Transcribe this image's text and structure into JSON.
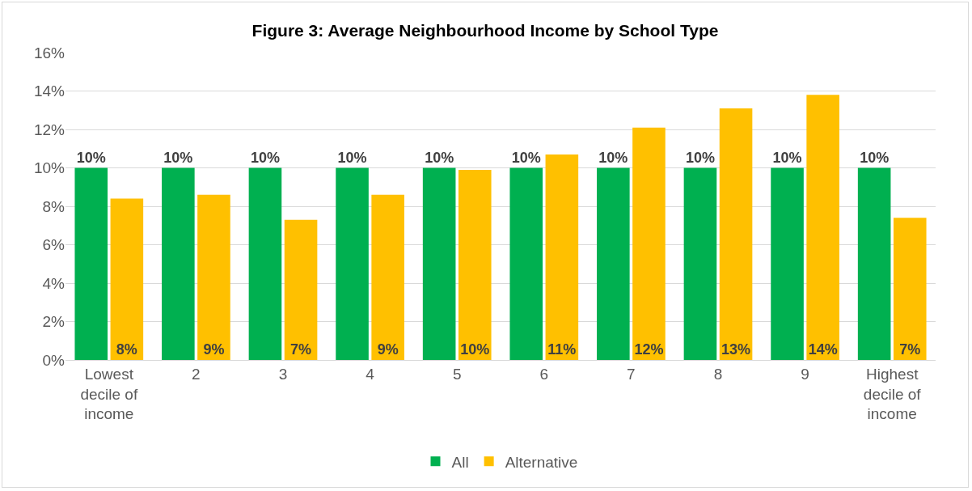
{
  "chart_data": {
    "type": "bar",
    "title": "Figure 3: Average Neighbourhood Income by School Type",
    "categories": [
      "Lowest decile of income",
      "2",
      "3",
      "4",
      "5",
      "6",
      "7",
      "8",
      "9",
      "Highest decile of income"
    ],
    "series": [
      {
        "name": "All",
        "color": "#00b050",
        "values": [
          10,
          10,
          10,
          10,
          10,
          10,
          10,
          10,
          10,
          10
        ],
        "value_labels": [
          "10%",
          "10%",
          "10%",
          "10%",
          "10%",
          "10%",
          "10%",
          "10%",
          "10%",
          "10%"
        ]
      },
      {
        "name": "Alternative",
        "color": "#ffc000",
        "values": [
          8.4,
          8.6,
          7.3,
          8.6,
          9.9,
          10.7,
          12.1,
          13.1,
          13.8,
          7.4
        ],
        "value_labels": [
          "8%",
          "9%",
          "7%",
          "9%",
          "10%",
          "11%",
          "12%",
          "13%",
          "14%",
          "7%"
        ]
      }
    ],
    "ylim": [
      0,
      16
    ],
    "yticks": [
      {
        "value": 0,
        "label": "0%"
      },
      {
        "value": 2,
        "label": "2%"
      },
      {
        "value": 4,
        "label": "4%"
      },
      {
        "value": 6,
        "label": "6%"
      },
      {
        "value": 8,
        "label": "8%"
      },
      {
        "value": 10,
        "label": "10%"
      },
      {
        "value": 12,
        "label": "12%"
      },
      {
        "value": 14,
        "label": "14%"
      },
      {
        "value": 16,
        "label": "16%"
      }
    ],
    "grid": "y",
    "legend": "bottom"
  }
}
